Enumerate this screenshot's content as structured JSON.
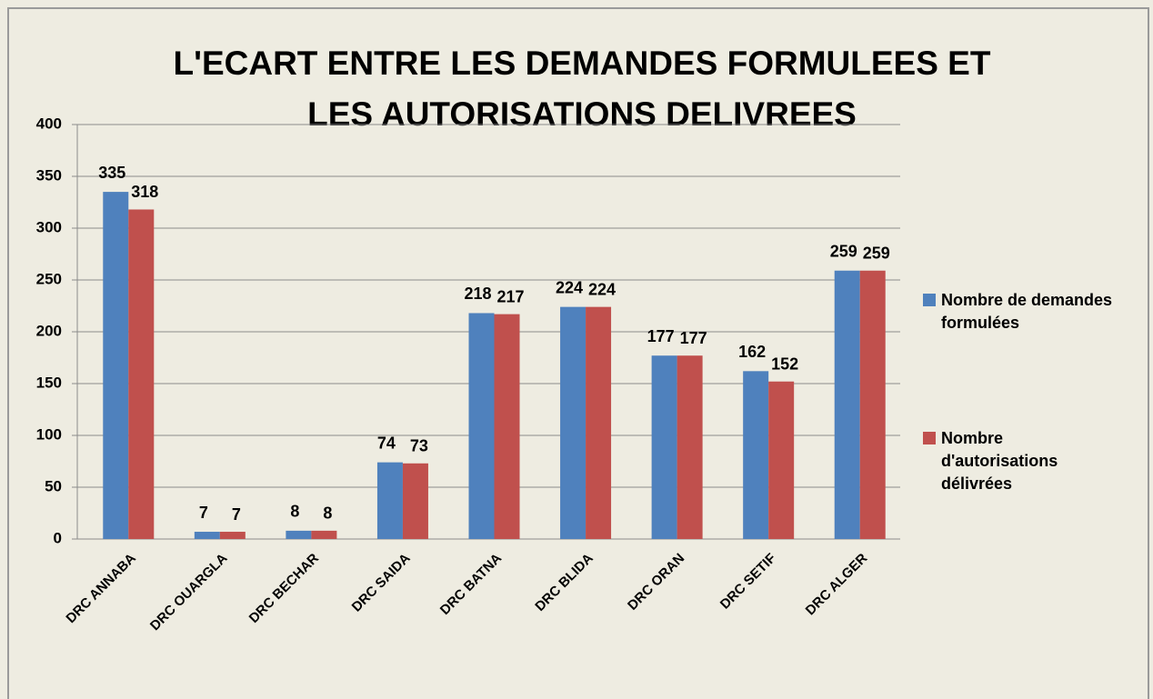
{
  "chart_data": {
    "type": "bar",
    "title": [
      "L'ECART ENTRE LES DEMANDES FORMULEES ET",
      "LES AUTORISATIONS DELIVREES"
    ],
    "categories": [
      "DRC ANNABA",
      "DRC OUARGLA",
      "DRC BECHAR",
      "DRC SAIDA",
      "DRC BATNA",
      "DRC BLIDA",
      "DRC ORAN",
      "DRC SETIF",
      "DRC ALGER"
    ],
    "series": [
      {
        "name": "Nombre de demandes formulées",
        "color": "#4f81bd",
        "values": [
          335,
          7,
          8,
          74,
          218,
          224,
          177,
          162,
          259
        ]
      },
      {
        "name": "Nombre d'autorisations délivrées",
        "color": "#c0504d",
        "values": [
          318,
          7,
          8,
          73,
          217,
          224,
          177,
          152,
          259
        ]
      }
    ],
    "ylim": [
      0,
      400
    ],
    "yticks": [
      0,
      50,
      100,
      150,
      200,
      250,
      300,
      350,
      400
    ],
    "grid": true,
    "legend": "right"
  }
}
